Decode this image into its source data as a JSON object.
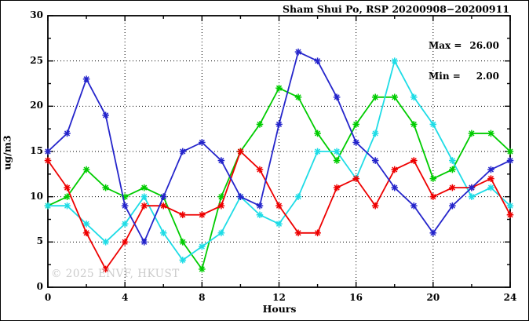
{
  "title": "Sham Shui Po, RSP 20200908−20200911",
  "stats": {
    "max_label": "Max =",
    "max_value": "26.00",
    "min_label": "Min =",
    "min_value": "2.00"
  },
  "watermark": "© 2025 ENVF, HKUST",
  "axes": {
    "xlabel": "Hours",
    "ylabel": "ug/m3",
    "x_ticks": [
      0,
      4,
      8,
      12,
      16,
      20,
      24
    ],
    "y_ticks": [
      0,
      5,
      10,
      15,
      20,
      25,
      30
    ],
    "x_minor_ticks": [
      2,
      6,
      10,
      14,
      18,
      22
    ],
    "y_minor_ticks": [
      2.5,
      7.5,
      12.5,
      17.5,
      22.5,
      27.5
    ],
    "xlim": [
      0,
      24
    ],
    "ylim": [
      0,
      30
    ],
    "grid": "dotted"
  },
  "chart_data": {
    "type": "line",
    "title": "Sham Shui Po, RSP 20200908−20200911",
    "xlabel": "Hours",
    "ylabel": "ug/m3",
    "xlim": [
      0,
      24
    ],
    "ylim": [
      0,
      30
    ],
    "legend_position": "none",
    "marker": "star",
    "x": [
      0,
      1,
      2,
      3,
      4,
      5,
      6,
      7,
      8,
      9,
      10,
      11,
      12,
      13,
      14,
      15,
      16,
      17,
      18,
      19,
      20,
      21,
      22,
      23,
      24
    ],
    "series": [
      {
        "name": "green-series",
        "color": "#00cc00",
        "values": [
          9,
          10,
          13,
          11,
          10,
          11,
          10,
          5,
          2,
          10,
          15,
          18,
          22,
          21,
          17,
          14,
          18,
          21,
          21,
          18,
          12,
          13,
          17,
          17,
          15
        ]
      },
      {
        "name": "cyan-series",
        "color": "#1edce6",
        "values": [
          9,
          9,
          7,
          5,
          7,
          10,
          6,
          3,
          4.5,
          6,
          10,
          8,
          7,
          10,
          15,
          15,
          12,
          17,
          25,
          21,
          18,
          14,
          10,
          11,
          9
        ]
      },
      {
        "name": "red-series",
        "color": "#ee0000",
        "values": [
          14,
          11,
          6,
          2,
          5,
          9,
          9,
          8,
          8,
          9,
          15,
          13,
          9,
          6,
          6,
          11,
          12,
          9,
          13,
          14,
          10,
          11,
          11,
          12,
          8
        ]
      },
      {
        "name": "blue-series",
        "color": "#2525cb",
        "values": [
          15,
          17,
          23,
          19,
          9,
          5,
          10,
          15,
          16,
          14,
          10,
          9,
          18,
          26,
          25,
          21,
          16,
          14,
          11,
          9,
          6,
          9,
          11,
          13,
          14
        ]
      }
    ],
    "annotations": [
      "Max = 26.00",
      "Min = 2.00"
    ]
  }
}
